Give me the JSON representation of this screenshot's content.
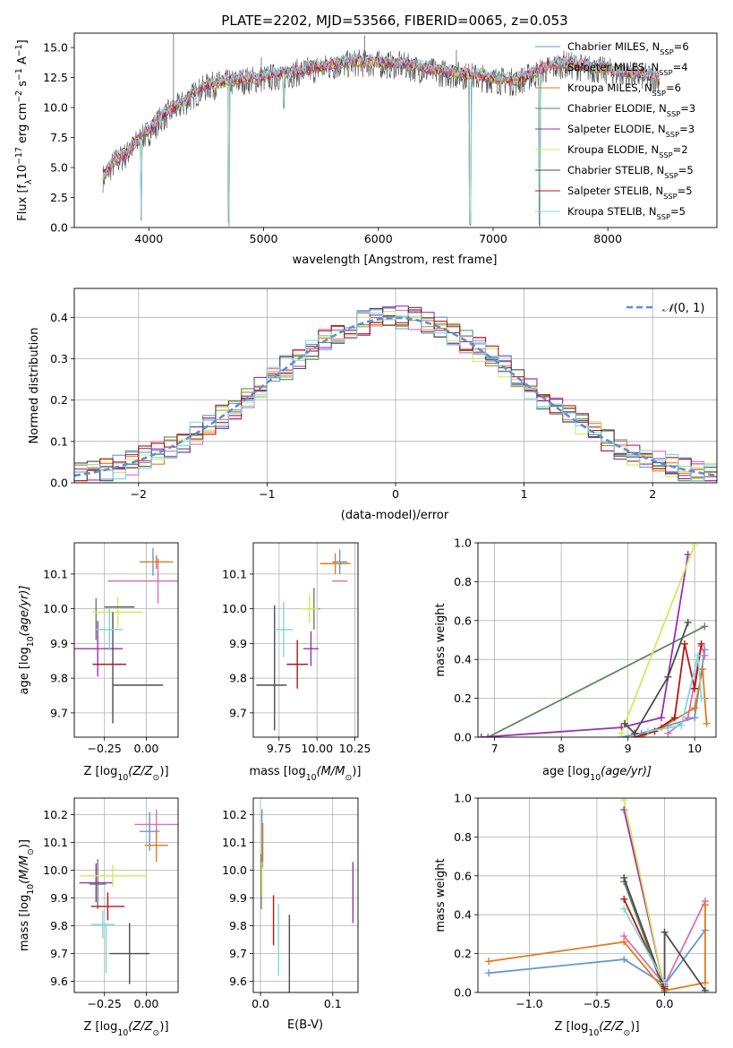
{
  "figure_title": "PLATE=2202, MJD=53566, FIBERID=0065, z=0.053",
  "series_colors": [
    "#6699cc",
    "#db6fb5",
    "#e07b1f",
    "#5c8a5c",
    "#9b30b0",
    "#d6e85a",
    "#4d4d4d",
    "#b31818",
    "#7fd8dc"
  ],
  "legend": [
    {
      "label": "Chabrier MILES, N",
      "sub": "SSP",
      "tail": "=6",
      "color": "#6699cc"
    },
    {
      "label": "Salpeter MILES, N",
      "sub": "SSP",
      "tail": "=4",
      "color": "#db6fb5"
    },
    {
      "label": "Kroupa MILES, N",
      "sub": "SSP",
      "tail": "=6",
      "color": "#e07b1f"
    },
    {
      "label": "Chabrier ELODIE, N",
      "sub": "SSP",
      "tail": "=3",
      "color": "#5c8a5c"
    },
    {
      "label": "Salpeter ELODIE, N",
      "sub": "SSP",
      "tail": "=3",
      "color": "#9b30b0"
    },
    {
      "label": "Kroupa ELODIE, N",
      "sub": "SSP",
      "tail": "=2",
      "color": "#d6e85a"
    },
    {
      "label": "Chabrier STELIB, N",
      "sub": "SSP",
      "tail": "=5",
      "color": "#4d4d4d"
    },
    {
      "label": "Salpeter STELIB, N",
      "sub": "SSP",
      "tail": "=5",
      "color": "#b31818"
    },
    {
      "label": "Kroupa STELIB, N",
      "sub": "SSP",
      "tail": "=5",
      "color": "#7fd8dc"
    }
  ],
  "chart_data": [
    {
      "id": "spectrum",
      "type": "line",
      "title": "PLATE=2202, MJD=53566, FIBERID=0065, z=0.053",
      "xlabel": "wavelength [Angstrom, rest frame]",
      "ylabel_main": "Flux [f",
      "ylabel_sub": "λ",
      "ylabel_rest": "10",
      "ylabel_exp1": "−17",
      "ylabel_rest2": " erg cm",
      "ylabel_exp2": "−2",
      "ylabel_rest3": " s",
      "ylabel_exp3": "−1",
      "ylabel_rest4": " A",
      "ylabel_exp4": "−1",
      "ylabel_end": "]",
      "xlim": [
        3350,
        8950
      ],
      "ylim": [
        0,
        16.2
      ],
      "xticks": [
        "4000",
        "5000",
        "6000",
        "7000",
        "8000"
      ],
      "xtick_values": [
        4000,
        5000,
        6000,
        7000,
        8000
      ],
      "yticks": [
        "0.0",
        "2.5",
        "5.0",
        "7.5",
        "10.0",
        "12.5",
        "15.0"
      ],
      "ytick_values": [
        0,
        2.5,
        5,
        7.5,
        10,
        12.5,
        15
      ],
      "data_x_range": [
        3600,
        8450
      ],
      "continuum": [
        {
          "x": 3600,
          "y": 4.3
        },
        {
          "x": 3700,
          "y": 5.6
        },
        {
          "x": 3800,
          "y": 6.2
        },
        {
          "x": 3900,
          "y": 7.3
        },
        {
          "x": 4000,
          "y": 8.1
        },
        {
          "x": 4100,
          "y": 9.2
        },
        {
          "x": 4200,
          "y": 9.9
        },
        {
          "x": 4300,
          "y": 10.5
        },
        {
          "x": 4400,
          "y": 11.3
        },
        {
          "x": 4500,
          "y": 11.9
        },
        {
          "x": 4600,
          "y": 12.1
        },
        {
          "x": 4700,
          "y": 12.2
        },
        {
          "x": 4800,
          "y": 12.4
        },
        {
          "x": 5000,
          "y": 12.6
        },
        {
          "x": 5200,
          "y": 12.9
        },
        {
          "x": 5400,
          "y": 13.3
        },
        {
          "x": 5600,
          "y": 13.6
        },
        {
          "x": 5800,
          "y": 13.9
        },
        {
          "x": 6000,
          "y": 13.8
        },
        {
          "x": 6200,
          "y": 13.7
        },
        {
          "x": 6400,
          "y": 13.3
        },
        {
          "x": 6600,
          "y": 13.0
        },
        {
          "x": 6800,
          "y": 12.8
        },
        {
          "x": 7000,
          "y": 12.5
        },
        {
          "x": 7200,
          "y": 12.3
        },
        {
          "x": 7400,
          "y": 13.1
        },
        {
          "x": 7600,
          "y": 13.8
        },
        {
          "x": 7800,
          "y": 13.5
        },
        {
          "x": 8000,
          "y": 13.2
        },
        {
          "x": 8200,
          "y": 12.9
        },
        {
          "x": 8450,
          "y": 12.6
        }
      ],
      "absorption_features": [
        {
          "x": 3934,
          "y": 0.4
        },
        {
          "x": 4102,
          "y": 8.0
        },
        {
          "x": 4300,
          "y": 9.4
        },
        {
          "x": 4695,
          "y": 0.0
        },
        {
          "x": 5175,
          "y": 9.7
        },
        {
          "x": 6800,
          "y": 0.0
        },
        {
          "x": 7405,
          "y": 0.0
        }
      ],
      "spikes": [
        {
          "x": 4215,
          "y": 16.2
        },
        {
          "x": 4980,
          "y": 14.2
        },
        {
          "x": 5880,
          "y": 16.0
        },
        {
          "x": 6680,
          "y": 14.8
        }
      ]
    },
    {
      "id": "residuals",
      "type": "line",
      "xlabel": "(data-model)/error",
      "ylabel": "Normed distribution",
      "xlim": [
        -2.5,
        2.5
      ],
      "ylim": [
        0,
        0.47
      ],
      "xticks": [
        "−2",
        "−1",
        "0",
        "1",
        "2"
      ],
      "xtick_values": [
        -2,
        -1,
        0,
        1,
        2
      ],
      "yticks": [
        "0.0",
        "0.1",
        "0.2",
        "0.3",
        "0.4"
      ],
      "ytick_values": [
        0,
        0.1,
        0.2,
        0.3,
        0.4
      ],
      "gaussian_label_pre": "𝒩",
      "gaussian_label_post": "(0, 1)",
      "gaussian_mean": 0,
      "gaussian_sigma": 1,
      "bin_width": 0.1,
      "bin_start": -2.5,
      "bin_count": 50
    },
    {
      "id": "age_vs_Z",
      "type": "scatter",
      "xlabel_pre": "Z [log",
      "xlabel_sub": "10",
      "xlabel_post": "(Z/Z",
      "xlabel_sun": "⊙",
      "xlabel_end": ")]",
      "ylabel_pre": "age  [log",
      "ylabel_sub": "10",
      "ylabel_post": "(age/yr)]",
      "xlim": [
        -0.43,
        0.19
      ],
      "ylim": [
        9.63,
        10.19
      ],
      "xticks": [
        "−0.25",
        "0.00"
      ],
      "xtick_values": [
        -0.25,
        0.0
      ],
      "yticks": [
        "9.7",
        "9.8",
        "9.9",
        "10.0",
        "10.1"
      ],
      "ytick_values": [
        9.7,
        9.8,
        9.9,
        10.0,
        10.1
      ],
      "points": [
        {
          "series": 0,
          "x": 0.04,
          "y": 10.135,
          "xerr": 0.0,
          "yerr": 0.04
        },
        {
          "series": 1,
          "x": 0.07,
          "y": 10.08,
          "xerr": 0.3,
          "yerr": 0.065
        },
        {
          "series": 2,
          "x": 0.06,
          "y": 10.135,
          "xerr": 0.1,
          "yerr": 0.02
        },
        {
          "series": 3,
          "x": -0.3,
          "y": 9.97,
          "xerr": 0.0,
          "yerr": 0.06
        },
        {
          "series": 4,
          "x": -0.29,
          "y": 9.885,
          "xerr": 0.15,
          "yerr": 0.08
        },
        {
          "series": 5,
          "x": -0.17,
          "y": 9.99,
          "xerr": 0.15,
          "yerr": 0.045
        },
        {
          "series": 6,
          "x": -0.16,
          "y": 10.005,
          "xerr": 0.09,
          "yerr": 0.0
        },
        {
          "series": 6,
          "x": -0.2,
          "y": 9.83,
          "xerr": 0.0,
          "yerr": 0.16
        },
        {
          "series": 6,
          "x": -0.05,
          "y": 9.78,
          "xerr": 0.15,
          "yerr": 0.0
        },
        {
          "series": 7,
          "x": -0.22,
          "y": 9.84,
          "xerr": 0.1,
          "yerr": 0.0
        },
        {
          "series": 8,
          "x": -0.22,
          "y": 9.94,
          "xerr": 0.08,
          "yerr": 0.06
        }
      ]
    },
    {
      "id": "age_vs_mass",
      "type": "scatter",
      "xlabel_pre": "mass [log",
      "xlabel_sub": "10",
      "xlabel_post": "(M/M",
      "xlabel_sun": "⊙",
      "xlabel_end": ")]",
      "xlim": [
        9.58,
        10.27
      ],
      "ylim": [
        9.63,
        10.19
      ],
      "xticks": [
        "9.75",
        "10.00",
        "10.25"
      ],
      "xtick_values": [
        9.75,
        10.0,
        10.25
      ],
      "yticks": [
        "9.7",
        "9.8",
        "9.9",
        "10.0",
        "10.1"
      ],
      "ytick_values": [
        9.7,
        9.8,
        9.9,
        10.0,
        10.1
      ],
      "points": [
        {
          "series": 0,
          "x": 10.15,
          "y": 10.135,
          "xerr": 0.05,
          "yerr": 0.035
        },
        {
          "series": 1,
          "x": 10.15,
          "y": 10.08,
          "xerr": 0.05,
          "yerr": 0.0
        },
        {
          "series": 2,
          "x": 10.12,
          "y": 10.13,
          "xerr": 0.1,
          "yerr": 0.03
        },
        {
          "series": 3,
          "x": 9.98,
          "y": 10.0,
          "xerr": 0.04,
          "yerr": 0.06
        },
        {
          "series": 4,
          "x": 9.96,
          "y": 9.885,
          "xerr": 0.05,
          "yerr": 0.05
        },
        {
          "series": 5,
          "x": 9.95,
          "y": 10.0,
          "xerr": 0.06,
          "yerr": 0.04
        },
        {
          "series": 6,
          "x": 9.72,
          "y": 9.83,
          "xerr": 0.0,
          "yerr": 0.18
        },
        {
          "series": 6,
          "x": 9.7,
          "y": 9.78,
          "xerr": 0.1,
          "yerr": 0.0
        },
        {
          "series": 7,
          "x": 9.87,
          "y": 9.84,
          "xerr": 0.07,
          "yerr": 0.07
        },
        {
          "series": 8,
          "x": 9.78,
          "y": 9.94,
          "xerr": 0.06,
          "yerr": 0.08
        }
      ]
    },
    {
      "id": "massweight_vs_age",
      "type": "line",
      "xlabel_pre": "age  [log",
      "xlabel_sub": "10",
      "xlabel_post": "(age/yr)]",
      "ylabel": "mass weight",
      "xlim": [
        6.75,
        10.32
      ],
      "ylim": [
        0,
        1.0
      ],
      "xticks": [
        "7",
        "8",
        "9",
        "10"
      ],
      "xtick_values": [
        7,
        8,
        9,
        10
      ],
      "yticks": [
        "0.0",
        "0.2",
        "0.4",
        "0.6",
        "0.8",
        "1.0"
      ],
      "ytick_values": [
        0,
        0.2,
        0.4,
        0.6,
        0.8,
        1.0
      ],
      "series": [
        {
          "series": 0,
          "x": [
            8.9,
            9.2,
            9.6,
            10.0,
            10.15
          ],
          "y": [
            0.0,
            0.02,
            0.06,
            0.1,
            0.45
          ]
        },
        {
          "series": 1,
          "x": [
            9.6,
            9.9,
            10.1,
            10.15
          ],
          "y": [
            0.02,
            0.1,
            0.47,
            0.42
          ]
        },
        {
          "series": 2,
          "x": [
            9.2,
            9.5,
            10.0,
            10.12,
            10.15,
            10.18
          ],
          "y": [
            0.0,
            0.05,
            0.15,
            0.35,
            0.2,
            0.07
          ]
        },
        {
          "series": 3,
          "x": [
            6.9,
            10.15
          ],
          "y": [
            0.0,
            0.57
          ]
        },
        {
          "series": 4,
          "x": [
            6.8,
            8.9,
            9.5,
            9.9
          ],
          "y": [
            0.0,
            0.05,
            0.1,
            0.94
          ]
        },
        {
          "series": 5,
          "x": [
            8.9,
            10.0
          ],
          "y": [
            0.02,
            0.99
          ]
        },
        {
          "series": 6,
          "x": [
            8.95,
            9.1,
            9.6,
            9.9
          ],
          "y": [
            0.07,
            0.02,
            0.31,
            0.59
          ]
        },
        {
          "series": 7,
          "x": [
            9.1,
            9.4,
            9.7,
            9.85,
            10.0,
            10.1
          ],
          "y": [
            0.0,
            0.03,
            0.1,
            0.48,
            0.25,
            0.48
          ]
        },
        {
          "series": 8,
          "x": [
            9.3,
            9.8,
            10.05,
            10.1
          ],
          "y": [
            0.03,
            0.06,
            0.42,
            0.2
          ]
        }
      ]
    },
    {
      "id": "mass_vs_Z",
      "type": "scatter",
      "xlabel_pre": "Z [log",
      "xlabel_sub": "10",
      "xlabel_post": "(Z/Z",
      "xlabel_sun": "⊙",
      "xlabel_end": ")]",
      "ylabel_pre": "mass [log",
      "ylabel_sub": "10",
      "ylabel_post": "(M/M",
      "ylabel_sun": "⊙",
      "ylabel_end": ")]",
      "xlim": [
        -0.43,
        0.19
      ],
      "ylim": [
        9.56,
        10.26
      ],
      "xticks": [
        "−0.25",
        "0.00"
      ],
      "xtick_values": [
        -0.25,
        0.0
      ],
      "yticks": [
        "9.6",
        "9.7",
        "9.8",
        "9.9",
        "10.0",
        "10.1",
        "10.2"
      ],
      "ytick_values": [
        9.6,
        9.7,
        9.8,
        9.9,
        10.0,
        10.1,
        10.2
      ],
      "points": [
        {
          "series": 0,
          "x": 0.02,
          "y": 10.14,
          "xerr": 0.06,
          "yerr": 0.07
        },
        {
          "series": 1,
          "x": 0.06,
          "y": 10.165,
          "xerr": 0.13,
          "yerr": 0.055
        },
        {
          "series": 2,
          "x": 0.06,
          "y": 10.09,
          "xerr": 0.07,
          "yerr": 0.06
        },
        {
          "series": 3,
          "x": -0.29,
          "y": 9.95,
          "xerr": 0.05,
          "yerr": 0.09
        },
        {
          "series": 4,
          "x": -0.3,
          "y": 9.955,
          "xerr": 0.1,
          "yerr": 0.07
        },
        {
          "series": 5,
          "x": -0.2,
          "y": 9.98,
          "xerr": 0.2,
          "yerr": 0.04
        },
        {
          "series": 6,
          "x": -0.1,
          "y": 9.7,
          "xerr": 0.12,
          "yerr": 0.11
        },
        {
          "series": 7,
          "x": -0.23,
          "y": 9.87,
          "xerr": 0.1,
          "yerr": 0.05
        },
        {
          "series": 8,
          "x": -0.26,
          "y": 9.805,
          "xerr": 0.07,
          "yerr": 0.05
        },
        {
          "series": 8,
          "x": -0.24,
          "y": 9.72,
          "xerr": 0.0,
          "yerr": 0.09
        }
      ]
    },
    {
      "id": "mass_vs_EBV",
      "type": "scatter",
      "xlabel": "E(B-V)",
      "xlim": [
        -0.01,
        0.135
      ],
      "ylim": [
        9.56,
        10.26
      ],
      "xticks": [
        "0.0",
        "0.1"
      ],
      "xtick_values": [
        0.0,
        0.1
      ],
      "yticks": [
        "9.6",
        "9.7",
        "9.8",
        "9.9",
        "10.0",
        "10.1",
        "10.2"
      ],
      "ytick_values": [
        9.6,
        9.7,
        9.8,
        9.9,
        10.0,
        10.1,
        10.2
      ],
      "points": [
        {
          "series": 0,
          "x": 0.002,
          "y": 10.14,
          "xerr": 0.0,
          "yerr": 0.08
        },
        {
          "series": 1,
          "x": 0.003,
          "y": 10.1,
          "xerr": 0.0,
          "yerr": 0.07
        },
        {
          "series": 2,
          "x": 0.003,
          "y": 10.09,
          "xerr": 0.0,
          "yerr": 0.08
        },
        {
          "series": 3,
          "x": 0.001,
          "y": 9.96,
          "xerr": 0.0,
          "yerr": 0.1
        },
        {
          "series": 4,
          "x": 0.128,
          "y": 9.92,
          "xerr": 0.0,
          "yerr": 0.11
        },
        {
          "series": 5,
          "x": 0.002,
          "y": 9.97,
          "xerr": 0.0,
          "yerr": 0.06
        },
        {
          "series": 6,
          "x": 0.04,
          "y": 9.7,
          "xerr": 0.0,
          "yerr": 0.14
        },
        {
          "series": 7,
          "x": 0.018,
          "y": 9.82,
          "xerr": 0.0,
          "yerr": 0.09
        },
        {
          "series": 8,
          "x": 0.025,
          "y": 9.75,
          "xerr": 0.0,
          "yerr": 0.13
        }
      ]
    },
    {
      "id": "massweight_vs_Z",
      "type": "line",
      "xlabel_pre": "Z [log",
      "xlabel_sub": "10",
      "xlabel_post": "(Z/Z",
      "xlabel_sun": "⊙",
      "xlabel_end": ")]",
      "ylabel": "mass weight",
      "xlim": [
        -1.38,
        0.38
      ],
      "ylim": [
        0,
        1.0
      ],
      "xticks": [
        "−1.0",
        "−0.5",
        "0.0"
      ],
      "xtick_values": [
        -1.0,
        -0.5,
        0.0
      ],
      "yticks": [
        "0.0",
        "0.2",
        "0.4",
        "0.6",
        "0.8",
        "1.0"
      ],
      "ytick_values": [
        0,
        0.2,
        0.4,
        0.6,
        0.8,
        1.0
      ],
      "series": [
        {
          "series": 0,
          "x": [
            -1.3,
            -0.3,
            0.0,
            0.3
          ],
          "y": [
            0.1,
            0.17,
            0.04,
            0.32
          ]
        },
        {
          "series": 1,
          "x": [
            -0.3,
            0.0,
            0.3
          ],
          "y": [
            0.29,
            0.04,
            0.47
          ]
        },
        {
          "series": 2,
          "x": [
            -1.3,
            -0.3,
            0.0,
            0.3,
            0.3
          ],
          "y": [
            0.16,
            0.26,
            0.01,
            0.05,
            0.45
          ]
        },
        {
          "series": 3,
          "x": [
            -0.3,
            0.0
          ],
          "y": [
            0.57,
            0.0
          ]
        },
        {
          "series": 4,
          "x": [
            -0.3,
            0.0
          ],
          "y": [
            0.94,
            0.02
          ]
        },
        {
          "series": 5,
          "x": [
            -0.3,
            0.0
          ],
          "y": [
            0.99,
            0.02
          ]
        },
        {
          "series": 6,
          "x": [
            -0.3,
            0.0,
            0.0,
            0.3
          ],
          "y": [
            0.59,
            0.02,
            0.31,
            0.01
          ]
        },
        {
          "series": 7,
          "x": [
            -0.3,
            0.0
          ],
          "y": [
            0.48,
            0.03
          ]
        },
        {
          "series": 8,
          "x": [
            -0.3,
            0.0
          ],
          "y": [
            0.43,
            0.05
          ]
        }
      ]
    }
  ]
}
